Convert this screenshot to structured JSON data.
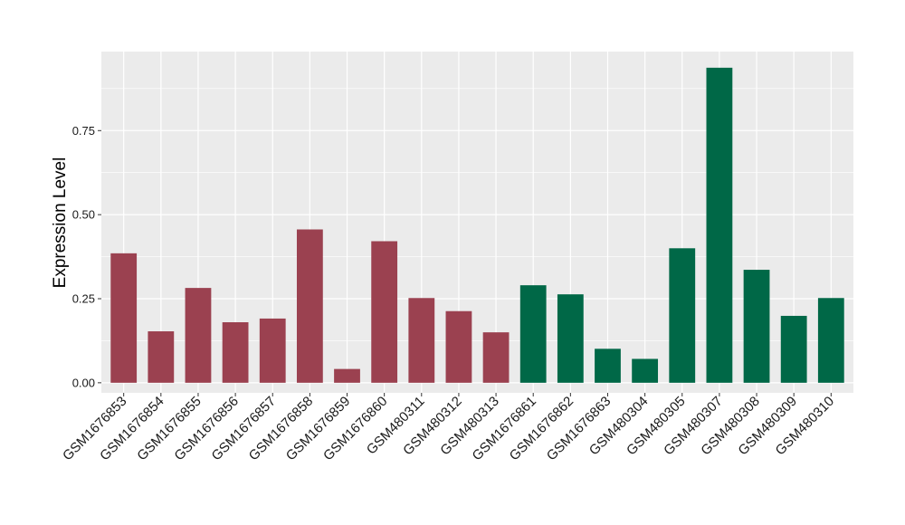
{
  "chart_data": {
    "type": "bar",
    "ylabel": "Expression Level",
    "xlabel": "",
    "ylim": [
      -0.03,
      0.985
    ],
    "yticks": [
      0.0,
      0.25,
      0.5,
      0.75
    ],
    "ytick_labels": [
      "0.00",
      "0.25",
      "0.50",
      "0.75"
    ],
    "grid": true,
    "legend": "none",
    "categories": [
      "GSM1676853",
      "GSM1676854",
      "GSM1676855",
      "GSM1676856",
      "GSM1676857",
      "GSM1676858",
      "GSM1676859",
      "GSM1676860",
      "GSM480311",
      "GSM480312",
      "GSM480313",
      "GSM1676861",
      "GSM1676862",
      "GSM1676863",
      "GSM480304",
      "GSM480305",
      "GSM480307",
      "GSM480308",
      "GSM480309",
      "GSM480310"
    ],
    "values": [
      0.385,
      0.153,
      0.282,
      0.18,
      0.191,
      0.456,
      0.041,
      0.421,
      0.252,
      0.213,
      0.15,
      0.29,
      0.263,
      0.101,
      0.071,
      0.4,
      0.937,
      0.336,
      0.199,
      0.252
    ],
    "bar_colors": [
      "#9b4150",
      "#9b4150",
      "#9b4150",
      "#9b4150",
      "#9b4150",
      "#9b4150",
      "#9b4150",
      "#9b4150",
      "#9b4150",
      "#9b4150",
      "#9b4150",
      "#006847",
      "#006847",
      "#006847",
      "#006847",
      "#006847",
      "#006847",
      "#006847",
      "#006847",
      "#006847"
    ],
    "panel_background": "#ebebeb",
    "grid_color": "#ffffff"
  }
}
